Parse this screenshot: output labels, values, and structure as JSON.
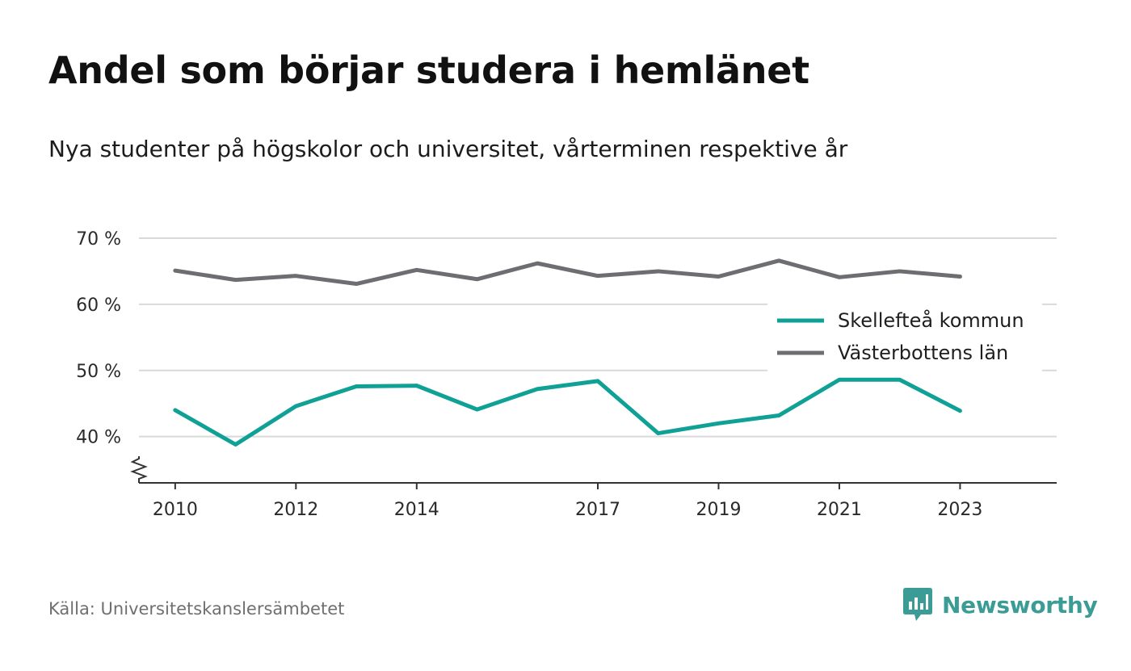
{
  "title": "Andel som börjar studera i hemlänet",
  "subtitle": "Nya studenter på högskolor och universitet, vårterminen respektive år",
  "source": "Källa: Universitetskanslersämbetet",
  "brand": "Newsworthy",
  "colors": {
    "series1": "#0fa195",
    "series2": "#6d6d72",
    "grid": "#d9d9d9",
    "axis": "#333333",
    "brand": "#3a9c94"
  },
  "chart_data": {
    "type": "line",
    "title": "Andel som börjar studera i hemlänet",
    "subtitle": "Nya studenter på högskolor och universitet, vårterminen respektive år",
    "x": [
      2010,
      2011,
      2012,
      2013,
      2014,
      2015,
      2016,
      2017,
      2018,
      2019,
      2020,
      2021,
      2022,
      2023
    ],
    "x_tick_labels": [
      "2010",
      "2012",
      "2014",
      "2017",
      "2019",
      "2021",
      "2023"
    ],
    "x_tick_values": [
      2010,
      2012,
      2014,
      2017,
      2019,
      2021,
      2023
    ],
    "y_tick_labels": [
      "40 %",
      "50 %",
      "60 %",
      "70 %"
    ],
    "y_tick_values": [
      40,
      50,
      60,
      70
    ],
    "ylim": [
      33,
      70
    ],
    "xlim": [
      2009.4,
      2024.6
    ],
    "y_axis_break": true,
    "grid": "horizontal",
    "legend_position": "right",
    "series": [
      {
        "name": "Skellefteå kommun",
        "values": [
          44.0,
          38.8,
          44.6,
          47.6,
          47.7,
          44.1,
          47.2,
          48.4,
          40.5,
          42.0,
          43.2,
          48.6,
          48.6,
          43.9
        ]
      },
      {
        "name": "Västerbottens län",
        "values": [
          65.1,
          63.7,
          64.3,
          63.1,
          65.2,
          63.8,
          66.2,
          64.3,
          65.0,
          64.2,
          66.6,
          64.1,
          65.0,
          64.2
        ]
      }
    ]
  }
}
